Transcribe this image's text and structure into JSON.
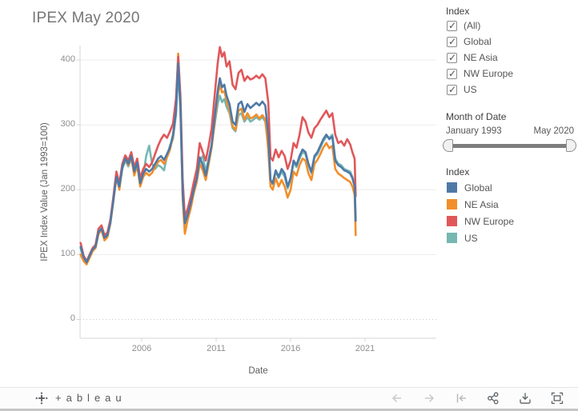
{
  "title": "IPEX May 2020",
  "filters": {
    "index_filter": {
      "title": "Index",
      "options": [
        {
          "label": "(All)",
          "checked": true
        },
        {
          "label": "Global",
          "checked": true
        },
        {
          "label": "NE Asia",
          "checked": true
        },
        {
          "label": "NW Europe",
          "checked": true
        },
        {
          "label": "US",
          "checked": true
        }
      ]
    },
    "date_slider": {
      "title": "Month of Date",
      "start_label": "January 1993",
      "end_label": "May 2020"
    }
  },
  "legend": {
    "title": "Index",
    "items": [
      {
        "label": "Global",
        "color": "#4e79a7"
      },
      {
        "label": "NE Asia",
        "color": "#f28e2b"
      },
      {
        "label": "NW Europe",
        "color": "#e15759"
      },
      {
        "label": "US",
        "color": "#76b7b2"
      }
    ]
  },
  "chart_data": {
    "type": "line",
    "title": "IPEX May 2020",
    "xlabel": "Date",
    "ylabel": "IPEX Index Value (Jan 1993=100)",
    "x_ticks": [
      "2006",
      "2011",
      "2016",
      "2021"
    ],
    "y_ticks": [
      "0",
      "100",
      "200",
      "300",
      "400"
    ],
    "xlim": [
      2001.9,
      2025.8
    ],
    "ylim": [
      -29,
      422
    ],
    "grid": true,
    "legend_position": "right",
    "x": [
      2001.9,
      2002.1,
      2002.3,
      2002.5,
      2002.7,
      2002.9,
      2003.1,
      2003.3,
      2003.5,
      2003.7,
      2003.9,
      2004.1,
      2004.3,
      2004.5,
      2004.7,
      2004.9,
      2005.1,
      2005.3,
      2005.5,
      2005.7,
      2005.9,
      2006.1,
      2006.3,
      2006.5,
      2006.7,
      2006.9,
      2007.1,
      2007.3,
      2007.5,
      2007.7,
      2007.9,
      2008.1,
      2008.3,
      2008.45,
      2008.6,
      2008.75,
      2008.9,
      2009.1,
      2009.3,
      2009.5,
      2009.7,
      2009.9,
      2010.1,
      2010.3,
      2010.5,
      2010.7,
      2010.9,
      2011.1,
      2011.25,
      2011.4,
      2011.55,
      2011.7,
      2011.9,
      2012.1,
      2012.3,
      2012.5,
      2012.7,
      2012.9,
      2013.1,
      2013.3,
      2013.5,
      2013.7,
      2013.9,
      2014.1,
      2014.3,
      2014.5,
      2014.65,
      2014.8,
      2015.0,
      2015.2,
      2015.4,
      2015.6,
      2015.8,
      2016.0,
      2016.2,
      2016.4,
      2016.6,
      2016.8,
      2017.0,
      2017.2,
      2017.4,
      2017.6,
      2017.8,
      2018.0,
      2018.2,
      2018.4,
      2018.6,
      2018.8,
      2019.0,
      2019.2,
      2019.4,
      2019.6,
      2019.8,
      2020.0,
      2020.15,
      2020.3,
      2020.37
    ],
    "series": [
      {
        "name": "Global",
        "color": "#4e79a7",
        "values": [
          112,
          96,
          88,
          98,
          108,
          112,
          135,
          140,
          126,
          130,
          150,
          185,
          220,
          205,
          235,
          248,
          240,
          252,
          228,
          242,
          210,
          225,
          232,
          228,
          232,
          240,
          248,
          252,
          246,
          255,
          265,
          285,
          320,
          395,
          330,
          195,
          148,
          162,
          180,
          200,
          218,
          250,
          238,
          222,
          245,
          270,
          312,
          352,
          372,
          358,
          362,
          345,
          332,
          305,
          300,
          332,
          336,
          320,
          332,
          326,
          330,
          334,
          330,
          336,
          330,
          285,
          215,
          210,
          230,
          220,
          232,
          225,
          205,
          218,
          245,
          238,
          252,
          262,
          258,
          240,
          228,
          252,
          258,
          268,
          278,
          285,
          278,
          282,
          245,
          238,
          235,
          230,
          228,
          225,
          218,
          205,
          152
        ]
      },
      {
        "name": "NE Asia",
        "color": "#f28e2b",
        "values": [
          100,
          90,
          85,
          95,
          105,
          110,
          132,
          138,
          122,
          127,
          148,
          183,
          222,
          200,
          237,
          250,
          238,
          250,
          222,
          238,
          205,
          220,
          226,
          222,
          226,
          235,
          243,
          246,
          240,
          250,
          262,
          282,
          325,
          410,
          325,
          185,
          132,
          155,
          172,
          195,
          212,
          240,
          230,
          215,
          240,
          265,
          305,
          345,
          362,
          350,
          352,
          338,
          322,
          298,
          292,
          322,
          325,
          308,
          318,
          310,
          312,
          316,
          310,
          315,
          308,
          262,
          205,
          200,
          218,
          205,
          215,
          205,
          188,
          200,
          228,
          222,
          238,
          248,
          245,
          225,
          215,
          240,
          246,
          255,
          265,
          272,
          264,
          268,
          232,
          225,
          222,
          218,
          215,
          212,
          205,
          192,
          130
        ]
      },
      {
        "name": "NW Europe",
        "color": "#e15759",
        "values": [
          118,
          98,
          90,
          100,
          110,
          115,
          140,
          145,
          130,
          134,
          154,
          190,
          228,
          210,
          240,
          253,
          245,
          258,
          235,
          248,
          218,
          232,
          240,
          235,
          242,
          255,
          268,
          278,
          285,
          280,
          290,
          302,
          340,
          405,
          345,
          215,
          158,
          172,
          190,
          212,
          232,
          272,
          258,
          245,
          268,
          295,
          345,
          395,
          420,
          405,
          412,
          390,
          398,
          362,
          355,
          380,
          385,
          368,
          375,
          370,
          372,
          376,
          372,
          378,
          372,
          335,
          250,
          245,
          262,
          250,
          260,
          252,
          232,
          245,
          272,
          265,
          285,
          312,
          305,
          288,
          280,
          295,
          300,
          308,
          315,
          322,
          312,
          318,
          285,
          272,
          275,
          268,
          278,
          270,
          258,
          248,
          190
        ]
      },
      {
        "name": "US",
        "color": "#76b7b2",
        "values": [
          110,
          95,
          87,
          97,
          107,
          111,
          134,
          139,
          125,
          129,
          149,
          184,
          218,
          202,
          232,
          245,
          236,
          248,
          225,
          238,
          208,
          222,
          252,
          268,
          240,
          232,
          238,
          235,
          230,
          252,
          268,
          278,
          315,
          385,
          320,
          195,
          150,
          160,
          178,
          198,
          215,
          245,
          252,
          228,
          248,
          268,
          300,
          332,
          345,
          335,
          340,
          328,
          318,
          295,
          290,
          315,
          318,
          305,
          312,
          305,
          308,
          312,
          308,
          312,
          305,
          270,
          212,
          208,
          228,
          218,
          228,
          220,
          202,
          215,
          242,
          235,
          248,
          258,
          255,
          238,
          225,
          250,
          255,
          265,
          275,
          282,
          280,
          285,
          248,
          240,
          238,
          232,
          230,
          228,
          220,
          208,
          155
        ]
      }
    ]
  },
  "toolbar": {
    "logo_text": "+ableau",
    "icons": [
      "back-arrow-icon",
      "forward-arrow-icon",
      "revert-all-icon",
      "share-icon",
      "download-icon",
      "fullscreen-icon"
    ]
  }
}
